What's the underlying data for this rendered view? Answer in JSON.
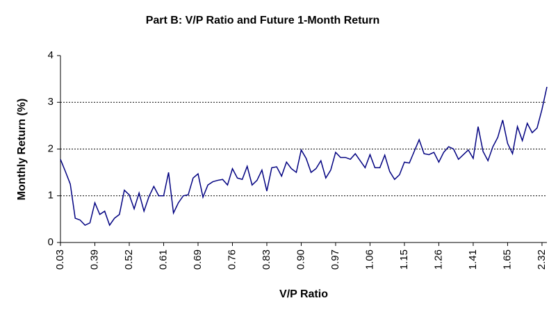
{
  "chart_data": {
    "type": "line",
    "title": "Part B: V/P Ratio and  Future 1-Month Return",
    "x_label": "V/P Ratio",
    "y_label": "Monthly Return (%)",
    "categories": [
      "0.03",
      null,
      null,
      null,
      null,
      null,
      null,
      "0.39",
      null,
      null,
      null,
      null,
      null,
      null,
      "0.52",
      null,
      null,
      null,
      null,
      null,
      null,
      "0.61",
      null,
      null,
      null,
      null,
      null,
      null,
      "0.69",
      null,
      null,
      null,
      null,
      null,
      null,
      "0.76",
      null,
      null,
      null,
      null,
      null,
      null,
      "0.83",
      null,
      null,
      null,
      null,
      null,
      null,
      "0.90",
      null,
      null,
      null,
      null,
      null,
      null,
      "0.97",
      null,
      null,
      null,
      null,
      null,
      null,
      "1.06",
      null,
      null,
      null,
      null,
      null,
      null,
      "1.15",
      null,
      null,
      null,
      null,
      null,
      null,
      "1.26",
      null,
      null,
      null,
      null,
      null,
      null,
      "1.41",
      null,
      null,
      null,
      null,
      null,
      null,
      "1.65",
      null,
      null,
      null,
      null,
      null,
      null,
      "2.32",
      null
    ],
    "series": [
      {
        "name": "Monthly Return",
        "color": "#000080",
        "values": [
          1.78,
          1.52,
          1.25,
          0.52,
          0.48,
          0.37,
          0.42,
          0.85,
          0.6,
          0.67,
          0.37,
          0.52,
          0.6,
          1.12,
          1.02,
          0.72,
          1.06,
          0.67,
          0.98,
          1.2,
          1.0,
          1.0,
          1.5,
          0.63,
          0.85,
          1.0,
          1.02,
          1.38,
          1.47,
          0.97,
          1.23,
          1.3,
          1.33,
          1.35,
          1.23,
          1.58,
          1.38,
          1.35,
          1.63,
          1.23,
          1.33,
          1.55,
          1.1,
          1.6,
          1.62,
          1.42,
          1.72,
          1.58,
          1.5,
          1.98,
          1.8,
          1.5,
          1.58,
          1.75,
          1.38,
          1.55,
          1.93,
          1.82,
          1.82,
          1.78,
          1.9,
          1.75,
          1.6,
          1.88,
          1.6,
          1.6,
          1.87,
          1.52,
          1.35,
          1.45,
          1.72,
          1.7,
          1.95,
          2.2,
          1.9,
          1.88,
          1.93,
          1.72,
          1.93,
          2.05,
          2.0,
          1.78,
          1.88,
          1.98,
          1.8,
          2.48,
          1.95,
          1.75,
          2.05,
          2.25,
          2.62,
          2.12,
          1.9,
          2.48,
          2.18,
          2.55,
          2.35,
          2.45,
          2.85,
          3.33
        ]
      }
    ],
    "ylim": [
      0,
      4
    ],
    "yticks": [
      0,
      1,
      2,
      3,
      4
    ],
    "grid": true
  }
}
